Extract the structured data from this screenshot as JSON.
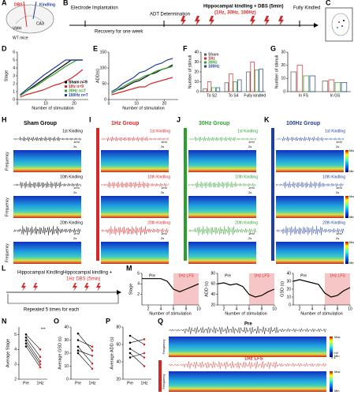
{
  "panel_letters": [
    "A",
    "B",
    "C",
    "D",
    "E",
    "F",
    "G",
    "H",
    "I",
    "J",
    "K",
    "L",
    "M",
    "N",
    "O",
    "P",
    "Q"
  ],
  "schematic": {
    "dbs": "DBS",
    "kindling": "Kindling",
    "vmh": "VMH",
    "ca3": "CA3",
    "mice": "WT mice"
  },
  "timeline": {
    "steps": [
      "Electrode Implantation",
      "ADT Determination",
      "Hippocampal kindling + DBS (5min)",
      "Fully Kindled"
    ],
    "recovery": "Recovery for one week",
    "frequencies": "(1Hz, 30Hz, 100Hz)"
  },
  "groups": [
    {
      "title": "Sham Group",
      "color": "#000000"
    },
    {
      "title": "1Hz Group",
      "color": "#d62728"
    },
    {
      "title": "30Hz Group",
      "color": "#2ca02c"
    },
    {
      "title": "100Hz Group",
      "color": "#1f3f99"
    }
  ],
  "kindling_labels": [
    "1st Kindling",
    "10th Kindling",
    "20th Kindling"
  ],
  "spectrogram": {
    "axis": "Frequency",
    "max": "Max",
    "min": "Min",
    "scale_v": "1mV",
    "scale_t": "2s"
  },
  "protocol": {
    "kindling": "Hippocampal Kindling",
    "dbs_line1": "Hippocampal kindling +",
    "dbs_line2": "1Hz DBS (5min)",
    "repeat": "Repeated 5 times for each"
  },
  "traces": {
    "pre": "Pre",
    "lfs": "1Hz LFS",
    "axis": "Frequency",
    "scale_v": "2 mV",
    "scale_t": "4 s",
    "max": "Max",
    "min": "Min"
  },
  "chart_data": [
    {
      "type": "line",
      "ylabel": "Stage",
      "xlabel": "Number of stimulation",
      "legend": true,
      "x": [
        1,
        3,
        5,
        7,
        9,
        11,
        13,
        15,
        17,
        19,
        21,
        23
      ],
      "xlim": [
        0,
        25
      ],
      "xticks": [
        0,
        10,
        20
      ],
      "ylim": [
        0,
        6
      ],
      "yticks": [
        0,
        1,
        2,
        3,
        4,
        5,
        6
      ],
      "series": [
        {
          "name": "Sham n=9",
          "color": "#000000",
          "values": [
            0.5,
            1,
            1.5,
            2,
            2.5,
            3,
            3.5,
            4,
            4.5,
            5,
            5,
            5
          ]
        },
        {
          "name": "1Hz n=9",
          "color": "#d62728",
          "values": [
            0.3,
            0.6,
            0.8,
            1,
            1.2,
            1.5,
            1.8,
            2,
            2.3,
            2.7,
            3.2,
            3.8
          ]
        },
        {
          "name": "30Hz n=7",
          "color": "#2ca02c",
          "values": [
            0.5,
            1,
            1.4,
            1.8,
            2.3,
            2.8,
            3.2,
            3.7,
            4.2,
            4.6,
            5,
            5
          ]
        },
        {
          "name": "100Hz n=7",
          "color": "#1f3f99",
          "values": [
            0.6,
            1.2,
            1.8,
            2.4,
            3,
            3.5,
            4,
            4.5,
            5,
            5,
            5,
            5
          ]
        }
      ]
    },
    {
      "type": "line",
      "ylabel": "ADD(s)",
      "xlabel": "Number of stimulation",
      "x": [
        1,
        3,
        5,
        7,
        9,
        11,
        13,
        15,
        17,
        19,
        21,
        23
      ],
      "xlim": [
        0,
        25
      ],
      "xticks": [
        0,
        10,
        20
      ],
      "ylim": [
        0,
        150
      ],
      "yticks": [
        0,
        50,
        100,
        150
      ],
      "series": [
        {
          "color": "#000000",
          "values": [
            20,
            30,
            35,
            45,
            55,
            60,
            70,
            80,
            85,
            95,
            100,
            110
          ]
        },
        {
          "color": "#d62728",
          "values": [
            15,
            20,
            25,
            30,
            35,
            40,
            40,
            50,
            55,
            60,
            65,
            70
          ]
        },
        {
          "color": "#2ca02c",
          "values": [
            20,
            30,
            40,
            50,
            60,
            65,
            75,
            80,
            90,
            95,
            100,
            105
          ]
        },
        {
          "color": "#1f3f99",
          "values": [
            25,
            35,
            50,
            60,
            70,
            85,
            90,
            100,
            110,
            115,
            125,
            130
          ]
        }
      ]
    },
    {
      "type": "bar",
      "ylabel": "Number of stimuli",
      "categories": [
        "To S2",
        "To S4",
        "Fully kindled"
      ],
      "ylim": [
        0,
        40
      ],
      "yticks": [
        0,
        10,
        20,
        30,
        40
      ],
      "legend": true,
      "series": [
        {
          "name": "Sham",
          "color": "#555555",
          "values": [
            3,
            9,
            20
          ]
        },
        {
          "name": "1Hz",
          "color": "#d62728",
          "values": [
            10,
            18,
            30
          ]
        },
        {
          "name": "30Hz",
          "color": "#2ca02c",
          "values": [
            4,
            10,
            22
          ]
        },
        {
          "name": "100Hz",
          "color": "#1f3f99",
          "values": [
            4,
            12,
            23
          ]
        }
      ]
    },
    {
      "type": "bar",
      "ylabel": "Number of stimuli",
      "categories": [
        "In FS",
        "In GS"
      ],
      "ylim": [
        0,
        30
      ],
      "yticks": [
        0,
        10,
        20,
        30
      ],
      "series": [
        {
          "color": "#555555",
          "values": [
            15,
            8
          ]
        },
        {
          "color": "#d62728",
          "values": [
            20,
            9
          ]
        },
        {
          "color": "#2ca02c",
          "values": [
            12,
            7
          ]
        },
        {
          "color": "#1f3f99",
          "values": [
            12,
            7
          ]
        }
      ]
    },
    {
      "type": "line",
      "ylabel": "Stage",
      "xlabel": "Number of stimulation",
      "annotations": [
        "Pre",
        "1Hz LFS"
      ],
      "highlight": [
        6,
        10
      ],
      "x": [
        1,
        2,
        3,
        4,
        5,
        6,
        7,
        8,
        9,
        10
      ],
      "xlim": [
        1,
        10
      ],
      "xticks": [
        2,
        4,
        6,
        8,
        10
      ],
      "ylim": [
        0,
        6
      ],
      "yticks": [
        2,
        4,
        6
      ],
      "series": [
        {
          "color": "#000000",
          "values": [
            5,
            5,
            5,
            5,
            4.5,
            3,
            2.5,
            3,
            3.5,
            4
          ]
        }
      ]
    },
    {
      "type": "line",
      "ylabel": "ADD (s)",
      "xlabel": "Number of stimulation",
      "annotations": [
        "Pre",
        "1Hz LFS"
      ],
      "highlight": [
        6,
        10
      ],
      "x": [
        1,
        2,
        3,
        4,
        5,
        6,
        7,
        8,
        9,
        10
      ],
      "xlim": [
        1,
        10
      ],
      "xticks": [
        2,
        4,
        6,
        8,
        10
      ],
      "ylim": [
        20,
        80
      ],
      "yticks": [
        20,
        40,
        60,
        80
      ],
      "series": [
        {
          "color": "#000000",
          "values": [
            60,
            62,
            58,
            60,
            55,
            40,
            35,
            38,
            45,
            50
          ]
        }
      ]
    },
    {
      "type": "line",
      "ylabel": "GSD (s)",
      "xlabel": "Number of stimulation",
      "annotations": [
        "Pre",
        "1Hz LFS"
      ],
      "highlight": [
        6,
        10
      ],
      "x": [
        1,
        2,
        3,
        4,
        5,
        6,
        7,
        8,
        9,
        10
      ],
      "xlim": [
        1,
        10
      ],
      "xticks": [
        2,
        4,
        6,
        8,
        10
      ],
      "ylim": [
        0,
        40
      ],
      "yticks": [
        0,
        10,
        20,
        30,
        40
      ],
      "series": [
        {
          "color": "#000000",
          "values": [
            30,
            32,
            30,
            28,
            26,
            15,
            10,
            12,
            18,
            22
          ]
        }
      ]
    },
    {
      "type": "line",
      "ylabel": "Average Stage",
      "annotations": [
        "***"
      ],
      "categories": [
        "Pre",
        "1Hz"
      ],
      "point_colors": [
        "#000000",
        "#d62728"
      ],
      "ylim": [
        2,
        5.5
      ],
      "yticks": [
        2,
        3,
        4,
        5
      ],
      "series": [
        {
          "values": [
            5,
            4
          ]
        },
        {
          "values": [
            4.8,
            3.5
          ]
        },
        {
          "values": [
            4.6,
            3.2
          ]
        },
        {
          "values": [
            4.4,
            3
          ]
        },
        {
          "values": [
            4.2,
            2.8
          ]
        }
      ]
    },
    {
      "type": "line",
      "ylabel": "Average GSD (s)",
      "categories": [
        "Pre",
        "1Hz"
      ],
      "point_colors": [
        "#000000",
        "#d62728"
      ],
      "ylim": [
        0,
        40
      ],
      "yticks": [
        0,
        10,
        20,
        30,
        40
      ],
      "series": [
        {
          "values": [
            35,
            22
          ]
        },
        {
          "values": [
            30,
            25
          ]
        },
        {
          "values": [
            25,
            12
          ]
        },
        {
          "values": [
            22,
            18
          ]
        },
        {
          "values": [
            20,
            8
          ]
        }
      ]
    },
    {
      "type": "line",
      "ylabel": "Average ADD (s)",
      "categories": [
        "Pre",
        "1Hz"
      ],
      "point_colors": [
        "#000000",
        "#d62728"
      ],
      "ylim": [
        20,
        80
      ],
      "yticks": [
        20,
        40,
        60,
        80
      ],
      "series": [
        {
          "values": [
            70,
            60
          ]
        },
        {
          "values": [
            62,
            66
          ]
        },
        {
          "values": [
            55,
            45
          ]
        },
        {
          "values": [
            50,
            35
          ]
        },
        {
          "values": [
            45,
            50
          ]
        }
      ]
    }
  ]
}
